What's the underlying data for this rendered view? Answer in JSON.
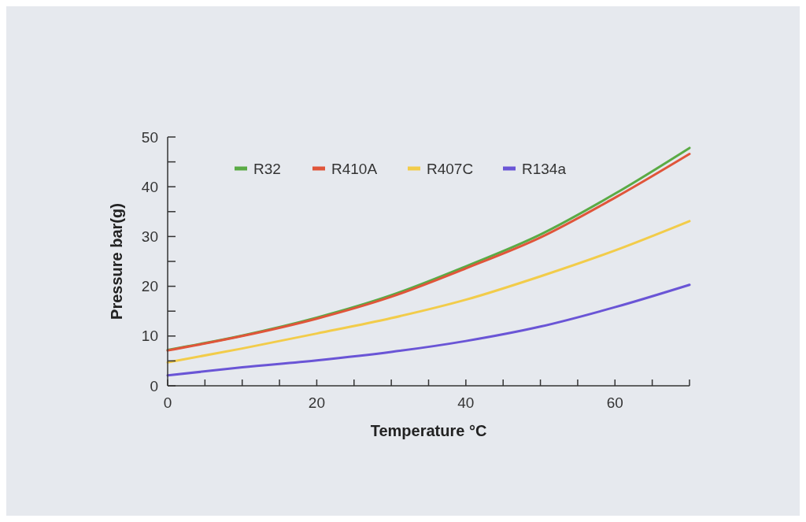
{
  "chart_data": {
    "type": "line",
    "xlabel": "Temperature °C",
    "ylabel": "Pressure bar(g)",
    "x": [
      0,
      10,
      20,
      30,
      40,
      50,
      60,
      70
    ],
    "series": [
      {
        "name": "R32",
        "color": "#5aab45",
        "values": [
          7.2,
          10.1,
          13.7,
          18.2,
          24.0,
          30.4,
          38.6,
          47.8
        ]
      },
      {
        "name": "R410A",
        "color": "#e0553a",
        "values": [
          7.1,
          10.0,
          13.5,
          17.9,
          23.6,
          29.8,
          37.8,
          46.6
        ]
      },
      {
        "name": "R407C",
        "color": "#f2cc4a",
        "values": [
          4.7,
          7.5,
          10.5,
          13.6,
          17.3,
          22.0,
          27.2,
          33.1
        ]
      },
      {
        "name": "R134a",
        "color": "#6a55d6",
        "values": [
          2.1,
          3.7,
          5.1,
          6.8,
          9.0,
          11.9,
          15.8,
          20.3
        ]
      }
    ],
    "xlim": [
      0,
      70
    ],
    "xticks": [
      0,
      {
        "value": 5,
        "label": null
      },
      {
        "value": 10,
        "label": null
      },
      {
        "value": 15,
        "label": null
      },
      20,
      {
        "value": 25,
        "label": null
      },
      {
        "value": 30,
        "label": null
      },
      {
        "value": 35,
        "label": null
      },
      40,
      {
        "value": 45,
        "label": null
      },
      {
        "value": 50,
        "label": null
      },
      {
        "value": 55,
        "label": null
      },
      60,
      {
        "value": 65,
        "label": null
      },
      {
        "value": 70,
        "label": null
      }
    ],
    "ylim": [
      0,
      50
    ],
    "yticks": [
      0,
      {
        "value": 5,
        "label": null
      },
      10,
      {
        "value": 15,
        "label": null
      },
      20,
      {
        "value": 25,
        "label": null
      },
      30,
      {
        "value": 35,
        "label": null
      },
      40,
      {
        "value": 45,
        "label": null
      },
      50
    ],
    "legend": "top left",
    "grid": false,
    "line_style": "solid",
    "marker": "none"
  }
}
